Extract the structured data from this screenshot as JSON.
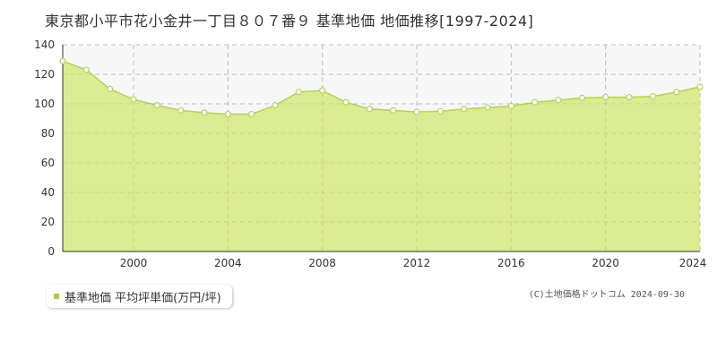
{
  "title": "東京都小平市花小金井一丁目８０７番９ 基準地価 地価推移[1997-2024]",
  "legend": {
    "label": "基準地価 平均坪単価(万円/坪)"
  },
  "copyright": "(C)土地価格ドットコム 2024-09-30",
  "colors": {
    "area": "#dbeb91",
    "line": "#b2d35a",
    "marker_fill": "#ffffff",
    "grid": "#cccccc",
    "legend_marker": "#a8cf45"
  },
  "chart_data": {
    "type": "area",
    "x": [
      1997,
      1998,
      1999,
      2000,
      2001,
      2002,
      2003,
      2004,
      2005,
      2006,
      2007,
      2008,
      2009,
      2010,
      2011,
      2012,
      2013,
      2014,
      2015,
      2016,
      2017,
      2018,
      2019,
      2020,
      2021,
      2022,
      2023,
      2024
    ],
    "series": [
      {
        "name": "基準地価 平均坪単価(万円/坪)",
        "values": [
          129,
          123,
          110,
          103,
          99,
          95.5,
          94,
          93,
          93,
          99,
          108,
          109,
          101,
          96.5,
          95.5,
          94.5,
          95,
          96.5,
          97.5,
          98.5,
          101,
          102.5,
          104,
          104.5,
          104.5,
          105,
          108,
          111.5
        ]
      }
    ],
    "xlim": [
      1997,
      2024
    ],
    "ylim": [
      0,
      140
    ],
    "yticks": [
      0,
      20,
      40,
      60,
      80,
      100,
      120,
      140
    ],
    "xticks": [
      2000,
      2004,
      2008,
      2012,
      2016,
      2020,
      2024
    ],
    "grid": true,
    "legend_position": "bottom-left"
  }
}
